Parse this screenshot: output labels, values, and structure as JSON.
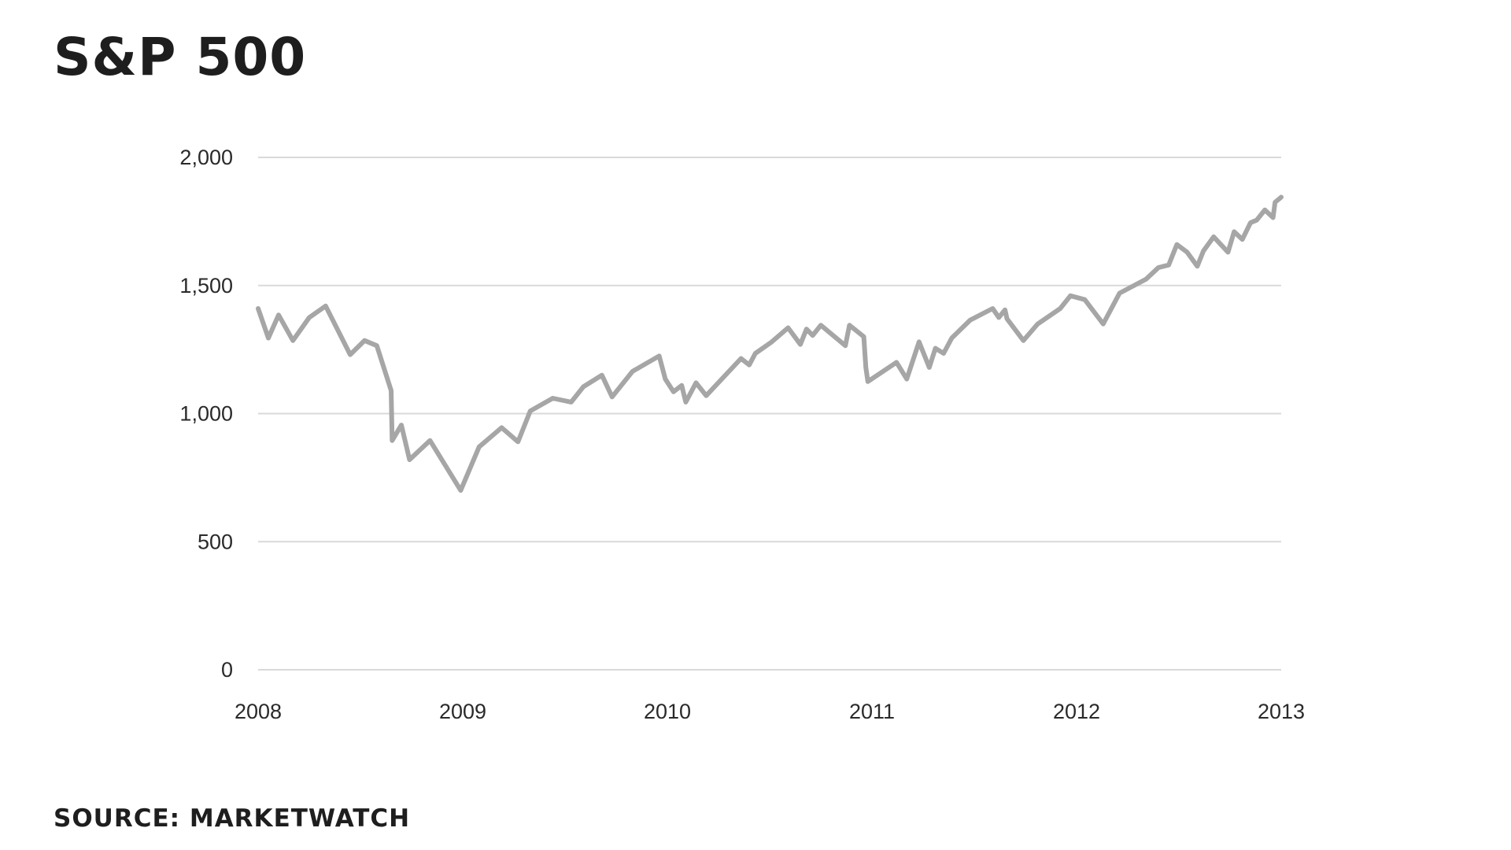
{
  "chart_data": {
    "type": "line",
    "title": "S&P 500",
    "source": "SOURCE: MARKETWATCH",
    "xlabel": "",
    "ylabel": "",
    "xlim": [
      2008,
      2013
    ],
    "ylim": [
      0,
      2000
    ],
    "x_ticks": [
      2008,
      2009,
      2010,
      2011,
      2012,
      2013
    ],
    "y_ticks": [
      {
        "value": 0,
        "label": "0"
      },
      {
        "value": 500,
        "label": "500"
      },
      {
        "value": 1000,
        "label": "1,000"
      },
      {
        "value": 1500,
        "label": "1,500"
      },
      {
        "value": 2000,
        "label": "2,000"
      }
    ],
    "grid": "horizontal",
    "line_color": "#a6a6a6",
    "grid_color": "#d9d9d9",
    "series": [
      {
        "x": [
          2008.0,
          2008.05,
          2008.1,
          2008.17,
          2008.25,
          2008.33,
          2008.45,
          2008.52,
          2008.58,
          2008.65,
          2008.655,
          2008.7,
          2008.74,
          2008.84,
          2008.99,
          2009.08,
          2009.19,
          2009.27,
          2009.33,
          2009.44,
          2009.53,
          2009.59,
          2009.68,
          2009.73,
          2009.83,
          2009.96,
          2009.99,
          2010.03,
          2010.07,
          2010.09,
          2010.14,
          2010.19,
          2010.36,
          2010.4,
          2010.43,
          2010.51,
          2010.59,
          2010.65,
          2010.68,
          2010.71,
          2010.75,
          2010.87,
          2010.89,
          2010.96,
          2010.97,
          2010.98,
          2011.12,
          2011.17,
          2011.23,
          2011.28,
          2011.31,
          2011.35,
          2011.39,
          2011.48,
          2011.59,
          2011.62,
          2011.65,
          2011.66,
          2011.74,
          2011.81,
          2011.92,
          2011.97,
          2012.04,
          2012.13,
          2012.21,
          2012.34,
          2012.4,
          2012.45,
          2012.49,
          2012.54,
          2012.59,
          2012.62,
          2012.67,
          2012.74,
          2012.77,
          2012.81,
          2012.85,
          2012.88,
          2012.92,
          2012.96,
          2012.97,
          2013.0
        ],
        "values": [
          1410,
          1295,
          1385,
          1285,
          1375,
          1420,
          1230,
          1285,
          1265,
          1090,
          895,
          955,
          820,
          895,
          700,
          870,
          945,
          890,
          1010,
          1060,
          1045,
          1105,
          1150,
          1065,
          1165,
          1225,
          1135,
          1085,
          1110,
          1045,
          1120,
          1070,
          1215,
          1190,
          1235,
          1280,
          1335,
          1270,
          1330,
          1305,
          1345,
          1265,
          1345,
          1300,
          1180,
          1125,
          1200,
          1135,
          1280,
          1180,
          1255,
          1235,
          1295,
          1365,
          1410,
          1375,
          1405,
          1370,
          1285,
          1350,
          1410,
          1460,
          1445,
          1350,
          1470,
          1525,
          1570,
          1580,
          1660,
          1630,
          1575,
          1635,
          1690,
          1630,
          1710,
          1680,
          1745,
          1755,
          1795,
          1765,
          1825,
          1845
        ]
      }
    ]
  }
}
